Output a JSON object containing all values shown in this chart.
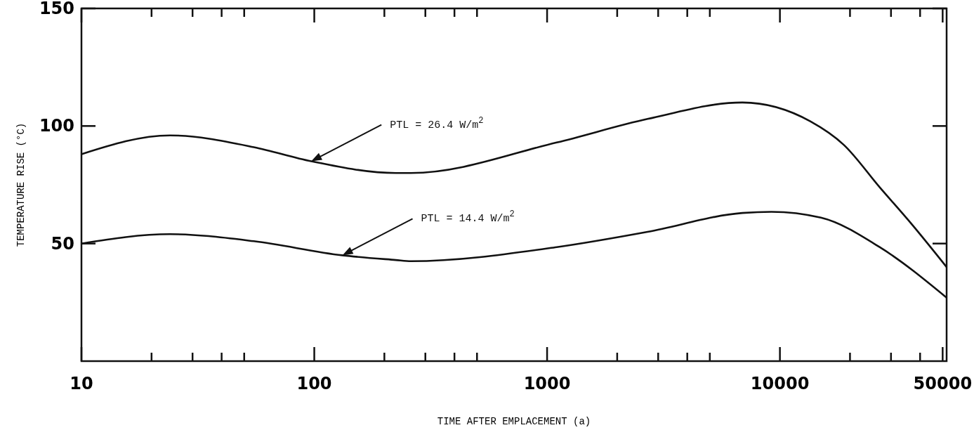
{
  "chart_data": {
    "type": "line",
    "xlabel": "TIME AFTER EMPLACEMENT (a)",
    "ylabel": "TEMPERATURE RISE (°C)",
    "log": "x",
    "xlim": [
      10,
      52000
    ],
    "ylim": [
      0,
      150
    ],
    "xticks": [
      10,
      {
        "value": 20,
        "label": null
      },
      {
        "value": 30,
        "label": null
      },
      {
        "value": 40,
        "label": null
      },
      {
        "value": 50,
        "label": null
      },
      100,
      {
        "value": 200,
        "label": null
      },
      {
        "value": 300,
        "label": null
      },
      {
        "value": 400,
        "label": null
      },
      {
        "value": 500,
        "label": null
      },
      1000,
      {
        "value": 2000,
        "label": null
      },
      {
        "value": 3000,
        "label": null
      },
      {
        "value": 4000,
        "label": null
      },
      {
        "value": 5000,
        "label": null
      },
      10000,
      {
        "value": 20000,
        "label": null
      },
      {
        "value": 30000,
        "label": null
      },
      {
        "value": 40000,
        "label": null
      },
      50000
    ],
    "yticks": [
      50,
      100,
      150
    ],
    "grid": false,
    "marker": "none",
    "line_style": "solid",
    "series": [
      {
        "name": "PTL = 26.4 W/m$^{2}$",
        "color": "#111111",
        "x": [
          10,
          24,
          55,
          97,
          224,
          260,
          1100,
          2700,
          6900,
          13500,
          18800,
          26800,
          37000,
          52000
        ],
        "values": [
          88,
          96,
          91,
          85,
          80,
          80,
          93,
          103,
          110,
          102,
          92,
          74,
          58,
          40
        ]
      },
      {
        "name": "PTL = 14.4 W/m$^{2}$",
        "color": "#111111",
        "x": [
          10,
          24,
          55,
          132,
          224,
          260,
          1100,
          2700,
          6900,
          9200,
          15000,
          26800,
          52000
        ],
        "values": [
          50,
          54,
          51,
          45,
          43,
          42.5,
          48.5,
          55,
          63,
          63.5,
          61,
          48.5,
          27
        ]
      }
    ]
  }
}
